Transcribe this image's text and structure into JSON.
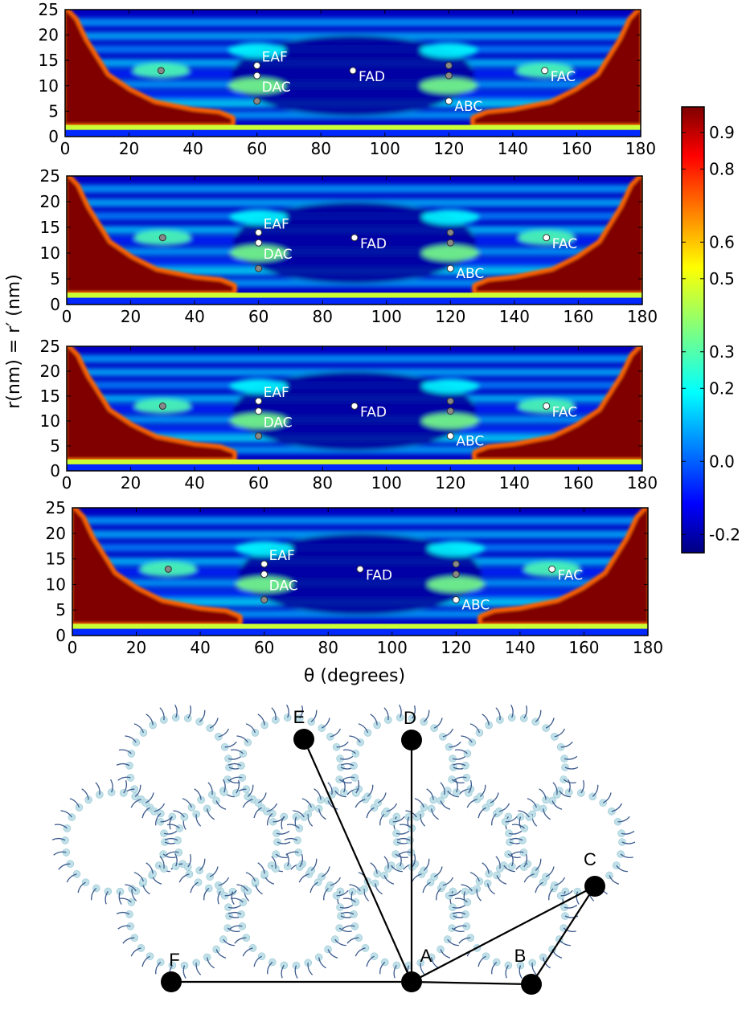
{
  "chart_data": {
    "type": "heatmap",
    "panels": [
      {
        "name": "",
        "x_range": [
          0,
          180
        ],
        "y_range": [
          0,
          25
        ]
      },
      {
        "name": "",
        "x_range": [
          0,
          180
        ],
        "y_range": [
          0,
          25
        ]
      },
      {
        "name": "",
        "x_range": [
          0,
          180
        ],
        "y_range": [
          0,
          25
        ]
      },
      {
        "name": "",
        "x_range": [
          0,
          180
        ],
        "y_range": [
          0,
          25
        ]
      }
    ],
    "xlabel": "θ (degrees)",
    "ylabel": "r(nm) = r′ (nm)",
    "x_ticks": [
      0,
      20,
      40,
      60,
      80,
      100,
      120,
      140,
      160,
      180
    ],
    "y_ticks": [
      0,
      5,
      10,
      15,
      20,
      25
    ],
    "colorbar": {
      "range": [
        -0.25,
        0.97
      ],
      "ticks": [
        "-0.2",
        "0.0",
        "0.2",
        "0.3",
        "0.5",
        "0.6",
        "0.8",
        "0.9"
      ],
      "tick_values": [
        -0.2,
        0.0,
        0.2,
        0.3,
        0.5,
        0.6,
        0.8,
        0.9
      ],
      "colormap": "jet"
    },
    "markers": [
      {
        "theta": 30,
        "r": 13,
        "label": "",
        "fill": "#888888"
      },
      {
        "theta": 60,
        "r": 14,
        "label": "EAF",
        "fill": "#ffffff"
      },
      {
        "theta": 60,
        "r": 12,
        "label": "DAC",
        "fill": "#ffffff"
      },
      {
        "theta": 60,
        "r": 7,
        "label": "",
        "fill": "#888888"
      },
      {
        "theta": 90,
        "r": 13,
        "label": "FAD",
        "fill": "#ffffff"
      },
      {
        "theta": 120,
        "r": 14,
        "label": "",
        "fill": "#888888"
      },
      {
        "theta": 120,
        "r": 12,
        "label": "",
        "fill": "#888888"
      },
      {
        "theta": 120,
        "r": 7,
        "label": "ABC",
        "fill": "#ffffff"
      },
      {
        "theta": 150,
        "r": 13,
        "label": "FAC",
        "fill": "#ffffff"
      }
    ]
  },
  "diagram": {
    "nodes": [
      {
        "label": "E"
      },
      {
        "label": "D"
      },
      {
        "label": "C"
      },
      {
        "label": "A"
      },
      {
        "label": "B"
      },
      {
        "label": "F"
      }
    ]
  }
}
